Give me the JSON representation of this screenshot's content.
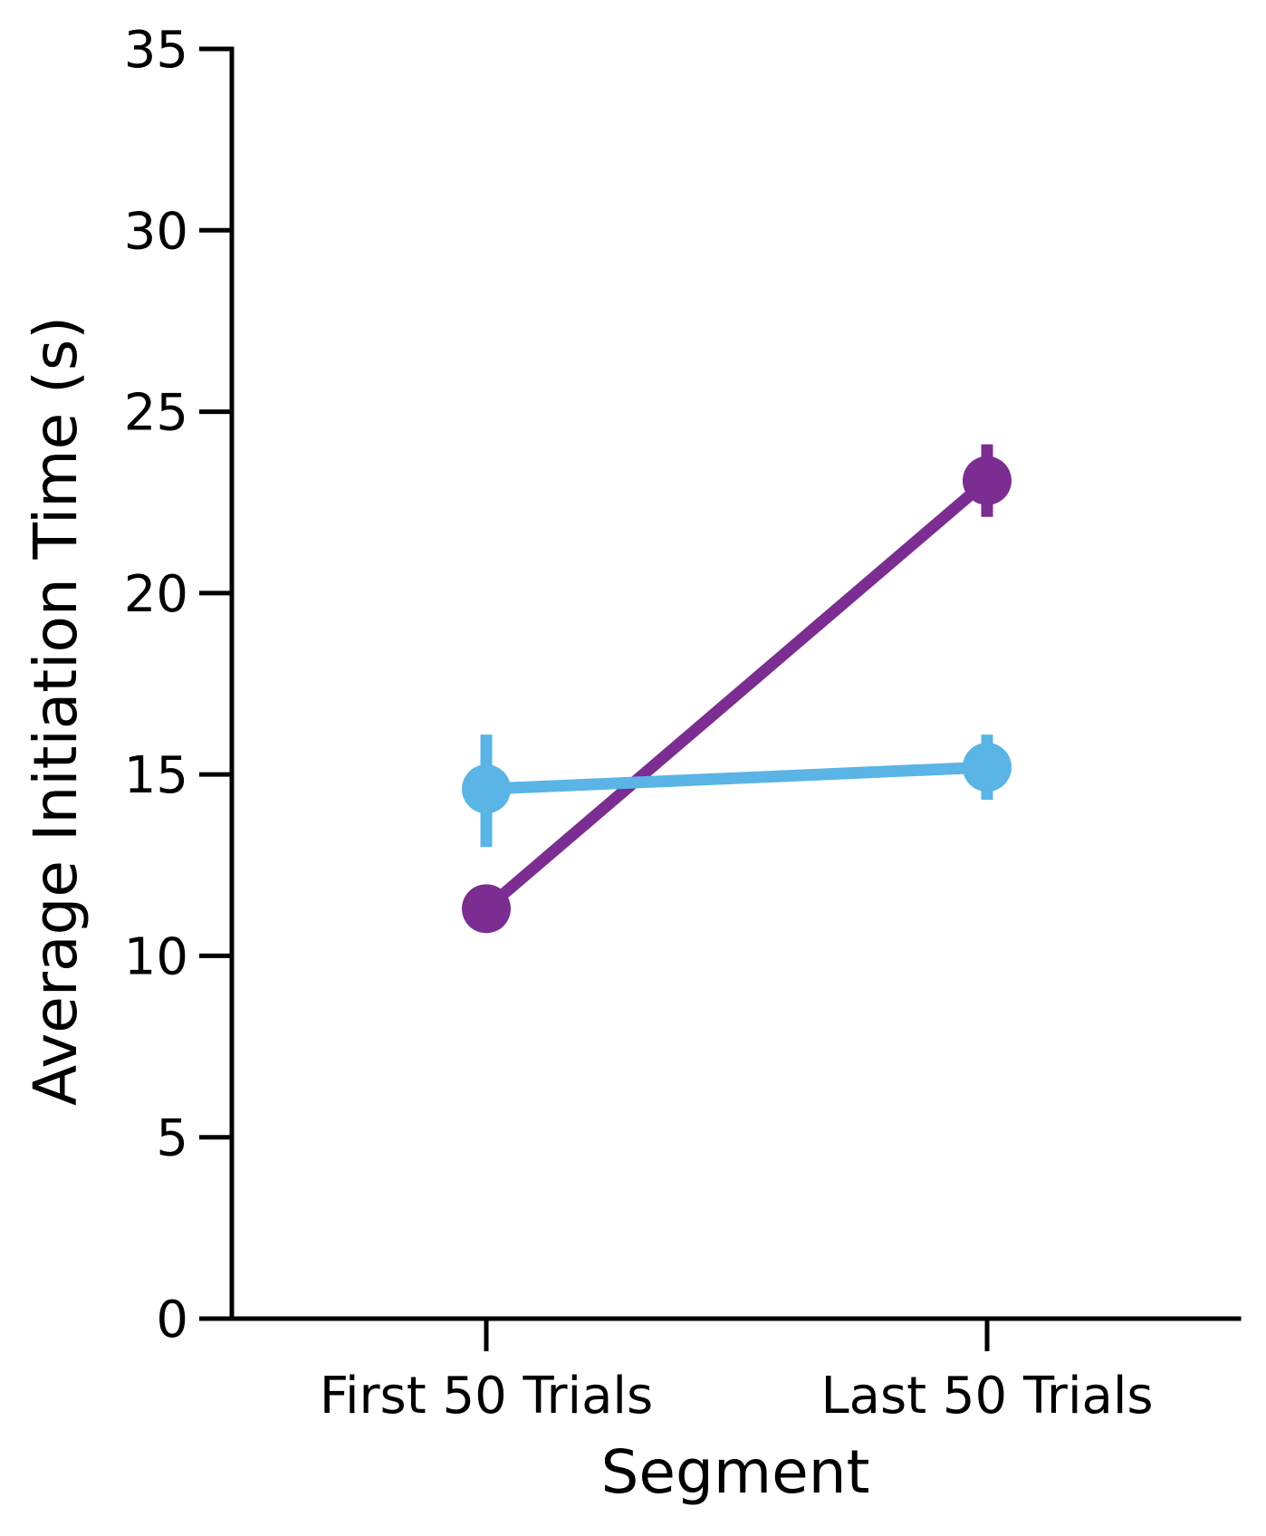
{
  "chart_data": {
    "type": "line",
    "title": "",
    "xlabel": "Segment",
    "ylabel": "Average Initiation Time (s)",
    "categories": [
      "First 50 Trials",
      "Last 50 Trials"
    ],
    "ylim": [
      0,
      35
    ],
    "yticks": [
      0,
      5,
      10,
      15,
      20,
      25,
      30,
      35
    ],
    "ytick_labels": [
      "0",
      "5",
      "10",
      "15",
      "20",
      "25",
      "30",
      "35"
    ],
    "grid": false,
    "legend": "none",
    "series": [
      {
        "color": "#7b2d91",
        "values": [
          11.3,
          23.1
        ],
        "error_low": [
          11.3,
          22.1
        ],
        "error_high": [
          11.3,
          24.1
        ]
      },
      {
        "color": "#5ab4e5",
        "values": [
          14.6,
          15.2
        ],
        "error_low": [
          13.0,
          14.3
        ],
        "error_high": [
          16.1,
          16.1
        ]
      }
    ]
  }
}
